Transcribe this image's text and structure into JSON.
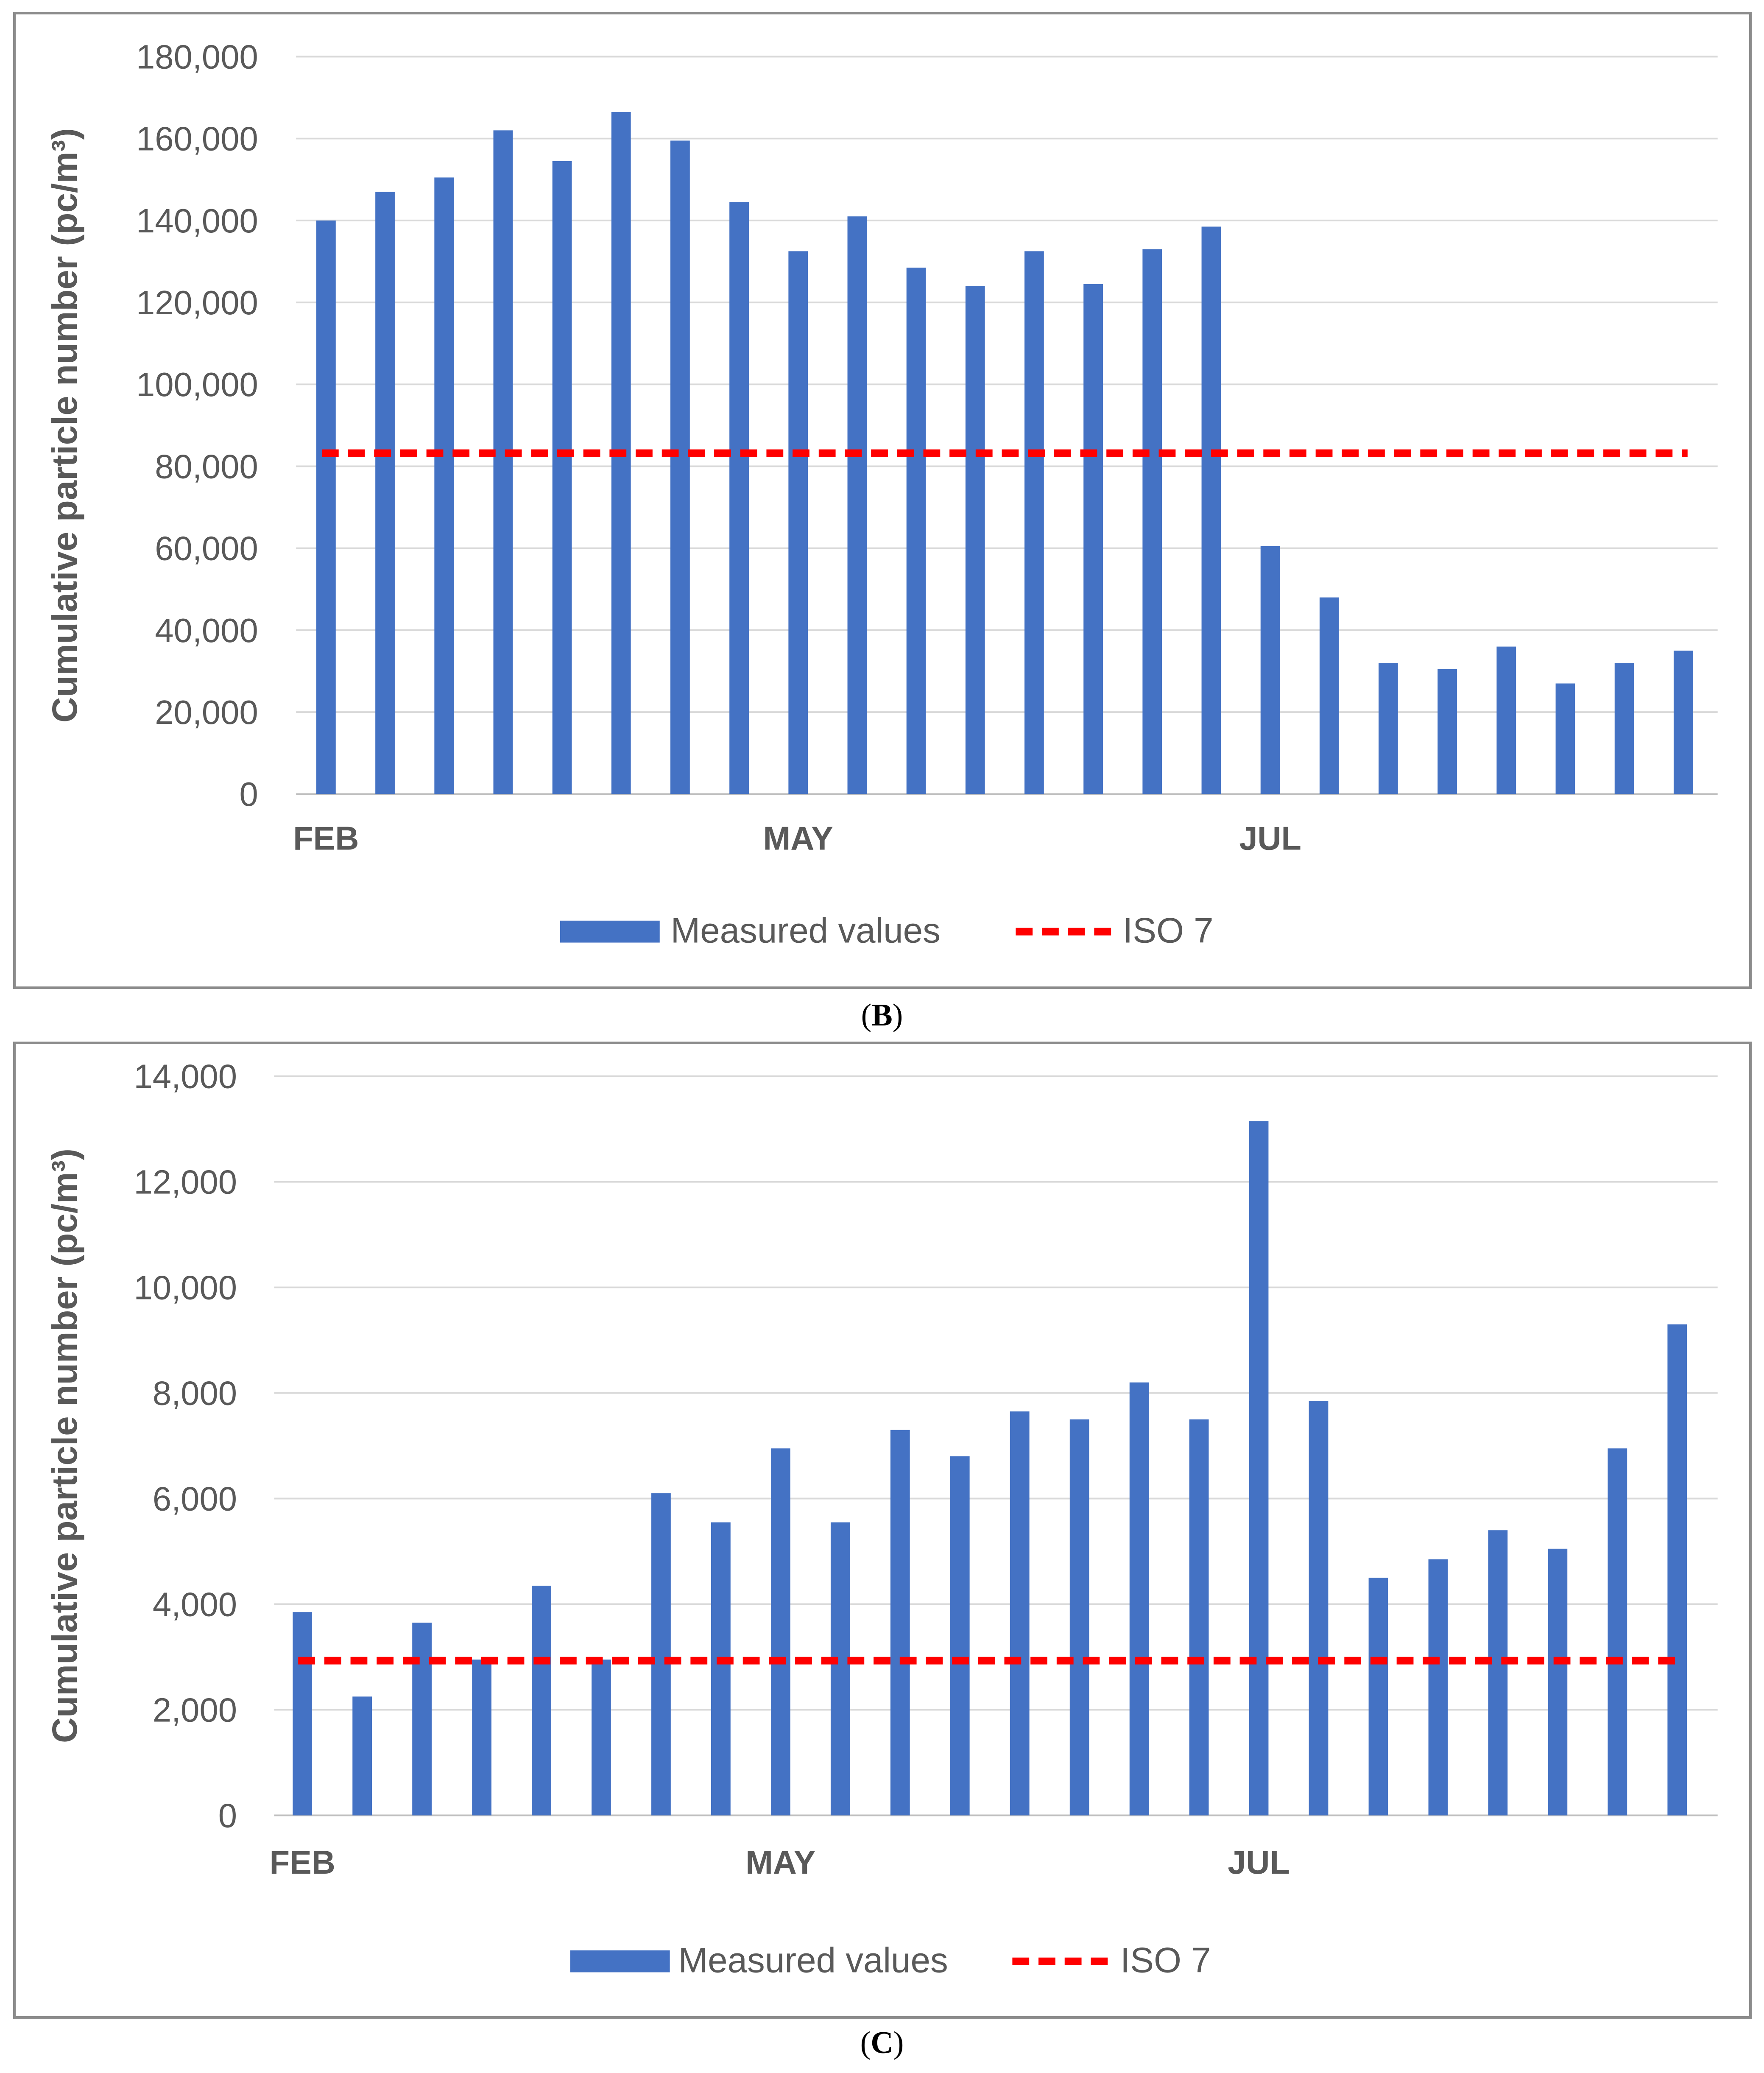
{
  "chart_data": [
    {
      "type": "bar",
      "panel": "B",
      "ylabel": "Cumulative particle number (pc/m³)",
      "xlabel": "",
      "ylim": [
        0,
        180000
      ],
      "yticks": [
        0,
        20000,
        40000,
        60000,
        80000,
        100000,
        120000,
        140000,
        160000,
        180000
      ],
      "ytick_labels": [
        "0",
        "20,000",
        "40,000",
        "60,000",
        "80,000",
        "100,000",
        "120,000",
        "140,000",
        "160,000",
        "180,000"
      ],
      "x_labels": [
        {
          "label": "FEB",
          "index": 0
        },
        {
          "label": "MAY",
          "index": 8
        },
        {
          "label": "JUL",
          "index": 16
        }
      ],
      "series": [
        {
          "name": "Measured values",
          "color": "#4472C4",
          "values": [
            140000,
            147000,
            150500,
            162000,
            154500,
            166500,
            159500,
            144500,
            132500,
            141000,
            128500,
            124000,
            132500,
            124500,
            133000,
            138500,
            60500,
            48000,
            32000,
            30500,
            36000,
            27000,
            32000,
            35000
          ]
        }
      ],
      "reference_line": {
        "name": "ISO 7",
        "value": 83200,
        "color": "#FF0000"
      },
      "grid": true,
      "legend_position": "bottom"
    },
    {
      "type": "bar",
      "panel": "C",
      "ylabel": "Cumulative particle number (pc/m³)",
      "xlabel": "",
      "ylim": [
        0,
        14000
      ],
      "yticks": [
        0,
        2000,
        4000,
        6000,
        8000,
        10000,
        12000,
        14000
      ],
      "ytick_labels": [
        "0",
        "2,000",
        "4,000",
        "6,000",
        "8,000",
        "10,000",
        "12,000",
        "14,000"
      ],
      "x_labels": [
        {
          "label": "FEB",
          "index": 0
        },
        {
          "label": "MAY",
          "index": 8
        },
        {
          "label": "JUL",
          "index": 16
        }
      ],
      "series": [
        {
          "name": "Measured values",
          "color": "#4472C4",
          "values": [
            3850,
            2250,
            3650,
            2950,
            4350,
            2950,
            6100,
            5550,
            6950,
            5550,
            7300,
            6800,
            7650,
            7500,
            8200,
            7500,
            13150,
            7850,
            4500,
            4850,
            5400,
            5050,
            6950,
            9300
          ]
        }
      ],
      "reference_line": {
        "name": "ISO 7",
        "value": 2930,
        "color": "#FF0000"
      },
      "grid": true,
      "legend_position": "bottom"
    }
  ],
  "captions": {
    "b": {
      "open": "(",
      "letter": "B",
      "close": ")"
    },
    "c": {
      "open": "(",
      "letter": "C",
      "close": ")"
    }
  }
}
